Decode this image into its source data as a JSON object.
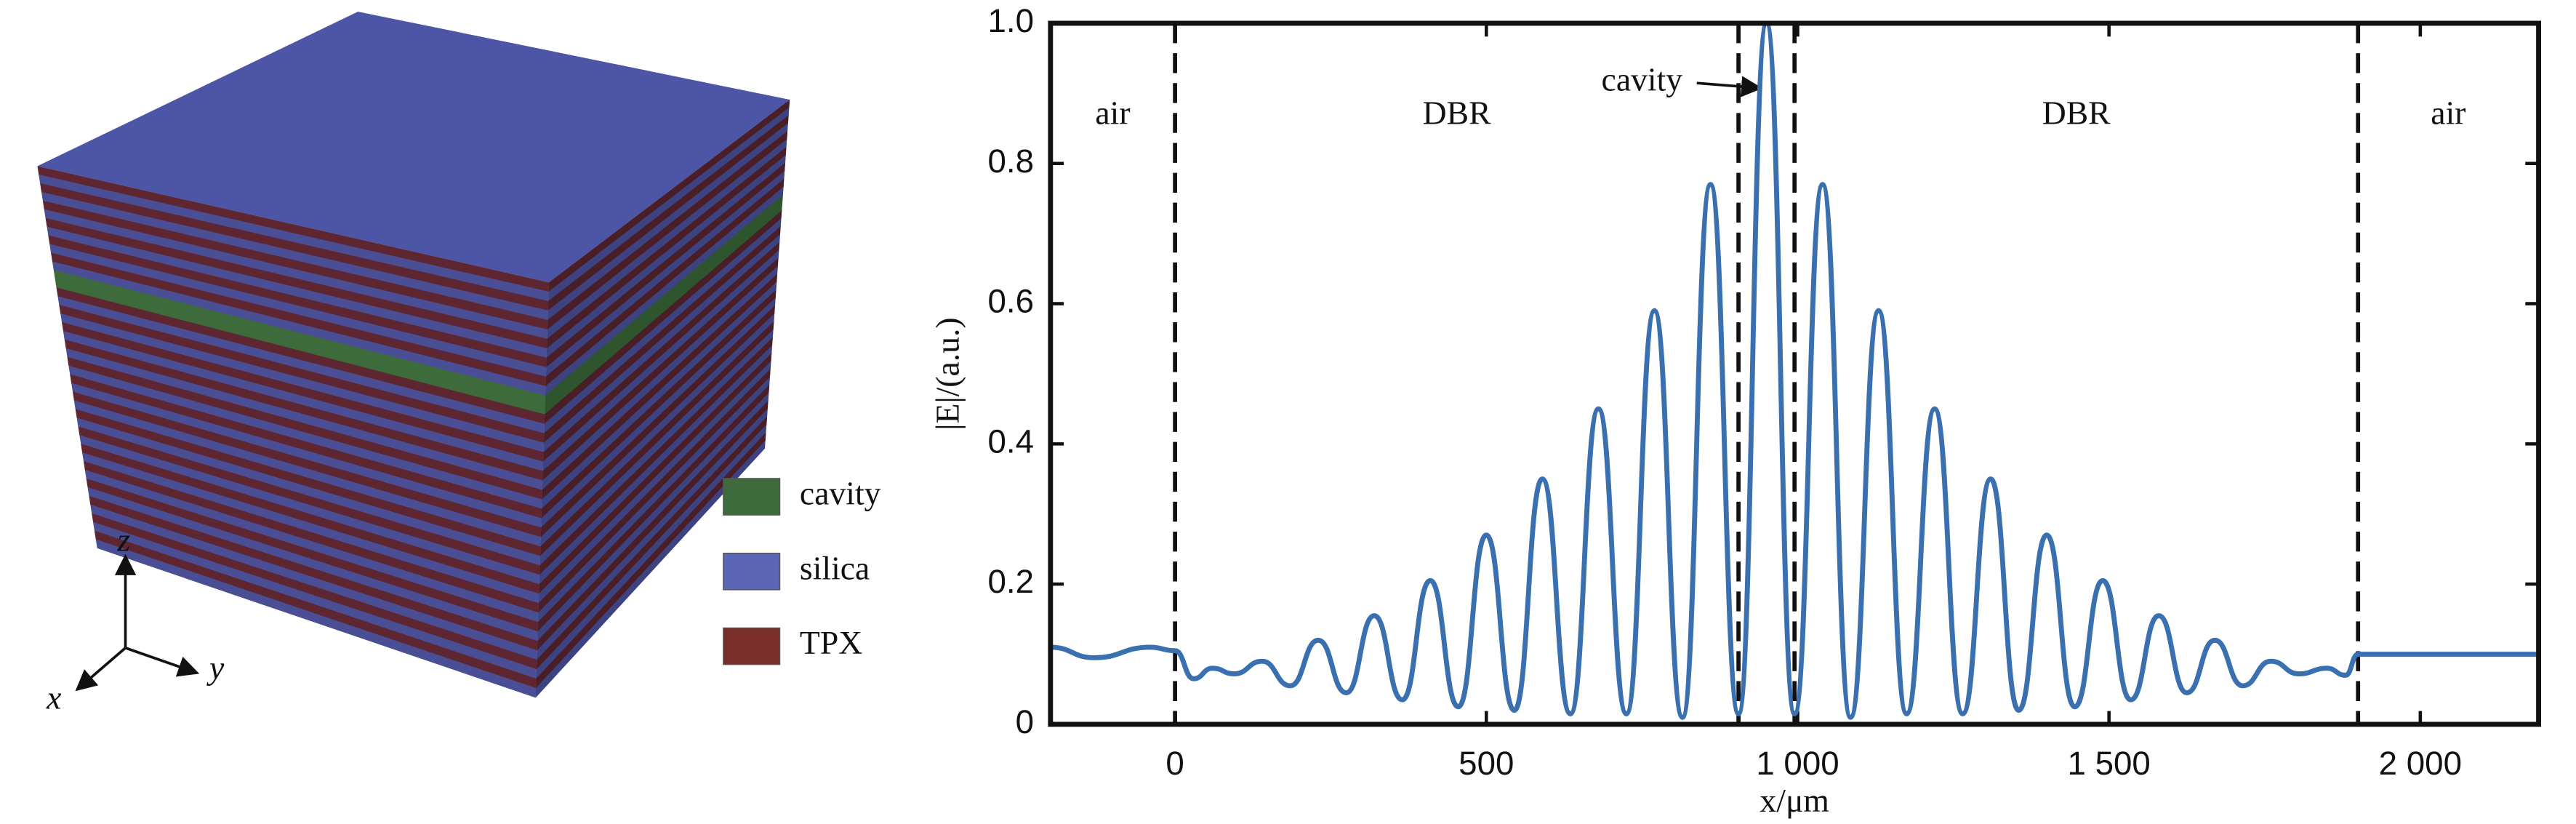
{
  "diagram": {
    "legend": [
      {
        "label": "cavity",
        "color": "#3d6b3b"
      },
      {
        "label": "silica",
        "color": "#5a66b5"
      },
      {
        "label": "TPX",
        "color": "#7a2e2a"
      }
    ],
    "axes": [
      "z",
      "y",
      "x"
    ]
  },
  "chart_data": {
    "type": "line",
    "xlabel": "x/μm",
    "ylabel": "|E|/(a.u.)",
    "regions": [
      "air",
      "DBR",
      "cavity",
      "DBR",
      "air"
    ],
    "boundaries": [
      0,
      905,
      995,
      1900
    ],
    "xlim": [
      -200,
      2190
    ],
    "ylim": [
      0,
      1
    ],
    "xticks": [
      0,
      500,
      {
        "value": 1000,
        "label": "1 000"
      },
      {
        "value": 1500,
        "label": "1 500"
      },
      {
        "value": 2000,
        "label": "2 000"
      }
    ],
    "yticks": [
      0,
      0.2,
      0.4,
      0.6,
      0.8,
      {
        "value": 1,
        "label": "1.0"
      }
    ],
    "series": [
      {
        "color": "#3a6fb0",
        "x": [
          -200,
          -130,
          -40,
          0,
          30,
          60,
          95,
          140,
          185,
          230,
          275,
          320,
          365,
          410,
          455,
          500,
          545,
          590,
          635,
          680,
          725,
          770,
          815,
          860,
          905,
          950,
          995,
          1040,
          1085,
          1130,
          1175,
          1220,
          1265,
          1310,
          1355,
          1400,
          1445,
          1490,
          1535,
          1580,
          1625,
          1670,
          1715,
          1760,
          1805,
          1850,
          1880,
          1900,
          2190
        ],
        "values": [
          0.11,
          0.095,
          0.11,
          0.105,
          0.065,
          0.08,
          0.072,
          0.09,
          0.055,
          0.12,
          0.045,
          0.155,
          0.035,
          0.205,
          0.025,
          0.27,
          0.02,
          0.35,
          0.015,
          0.45,
          0.015,
          0.59,
          0.01,
          0.77,
          0.015,
          1.0,
          0.015,
          0.77,
          0.01,
          0.59,
          0.015,
          0.45,
          0.015,
          0.35,
          0.02,
          0.27,
          0.025,
          0.205,
          0.035,
          0.155,
          0.045,
          0.12,
          0.055,
          0.09,
          0.072,
          0.08,
          0.07,
          0.1,
          0.1
        ]
      }
    ]
  }
}
